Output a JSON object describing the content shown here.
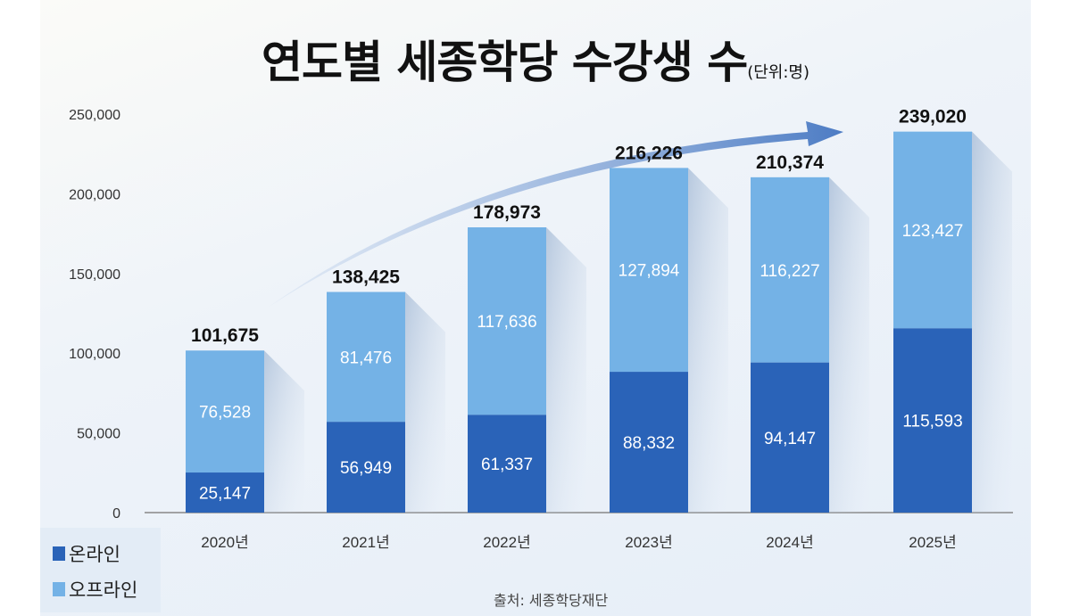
{
  "chart_data": {
    "type": "bar",
    "stacked": true,
    "title": "연도별 세종학당 수강생 수",
    "unit": "(단위:명)",
    "categories": [
      "2020년",
      "2021년",
      "2022년",
      "2023년",
      "2024년",
      "2025년"
    ],
    "series": [
      {
        "name": "온라인",
        "color": "#2a63b8",
        "values": [
          25147,
          56949,
          61337,
          88332,
          94147,
          115593
        ]
      },
      {
        "name": "오프라인",
        "color": "#74b2e6",
        "values": [
          76528,
          81476,
          117636,
          127894,
          116227,
          123427
        ]
      }
    ],
    "totals": [
      101675,
      138425,
      178973,
      216226,
      210374,
      239020
    ],
    "total_labels": [
      "101,675",
      "138,425",
      "178,973",
      "216,226",
      "210,374",
      "239,020"
    ],
    "online_labels": [
      "25,147",
      "56,949",
      "61,337",
      "88,332",
      "94,147",
      "115,593"
    ],
    "offline_labels": [
      "76,528",
      "81,476",
      "117,636",
      "127,894",
      "116,227",
      "123,427"
    ],
    "ylim": [
      0,
      250000
    ],
    "yticks": [
      0,
      50000,
      100000,
      150000,
      200000,
      250000
    ],
    "ytick_labels": [
      "0",
      "50,000",
      "100,000",
      "150,000",
      "200,000",
      "250,000"
    ],
    "grid": false,
    "legend_placement": "bottom-left",
    "trend_arrow": true,
    "source": "출처: 세종학당재단"
  }
}
